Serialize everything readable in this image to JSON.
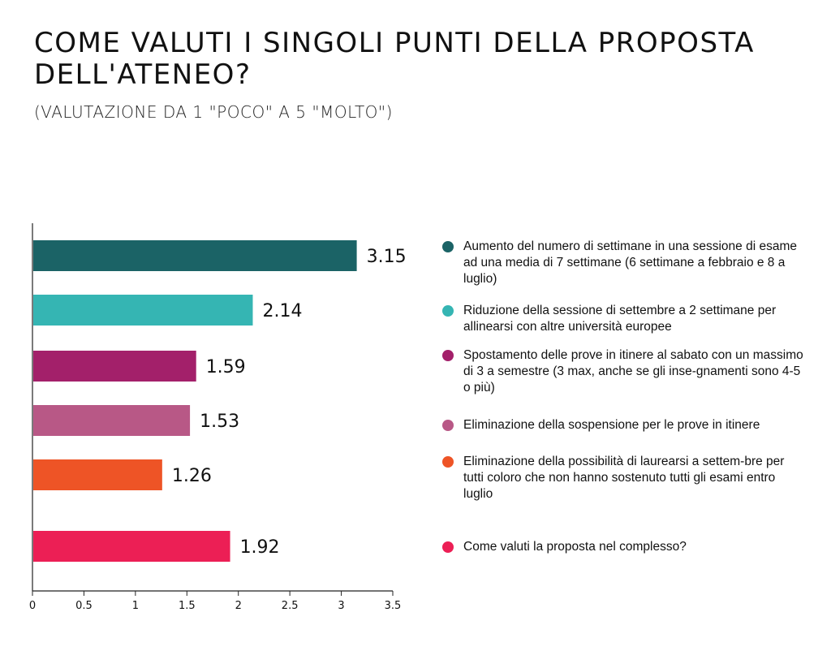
{
  "chart_data": {
    "type": "bar",
    "orientation": "horizontal",
    "title": "COME VALUTI I SINGOLI PUNTI DELLA PROPOSTA DELL'ATENEO?",
    "subtitle": "(VALUTAZIONE DA 1 \"POCO\" A 5 \"MOLTO\")",
    "xlim": [
      0,
      3.5
    ],
    "x_ticks": [
      "0",
      "0.5",
      "1",
      "1.5",
      "2",
      "2.5",
      "3",
      "3.5"
    ],
    "grid": false,
    "legend_position": "right",
    "categories": [
      "Aumento del numero di settimane in una sessione di esame ad una media di 7 settimane (6 settimane a febbraio e 8 a luglio)",
      "Riduzione della sessione di settembre a 2 settimane per allinearsi con altre università europee",
      "Spostamento delle prove in itinere al sabato con un massimo di 3 a semestre (3 max, anche se gli inse-gnamenti sono 4-5 o più)",
      "Eliminazione della sospensione per le prove in itinere",
      "Eliminazione della possibilità di laurearsi a settem-bre per tutti coloro che non hanno sostenuto tutti gli esami entro luglio",
      "Come valuti la proposta nel complesso?"
    ],
    "values": [
      3.15,
      2.14,
      1.59,
      1.53,
      1.26,
      1.92
    ],
    "value_labels": [
      "3.15",
      "2.14",
      "1.59",
      "1.53",
      "1.26",
      "1.92"
    ],
    "colors": [
      "#1b6366",
      "#35b5b3",
      "#a3206a",
      "#b85886",
      "#ee5426",
      "#ec1f55"
    ]
  }
}
